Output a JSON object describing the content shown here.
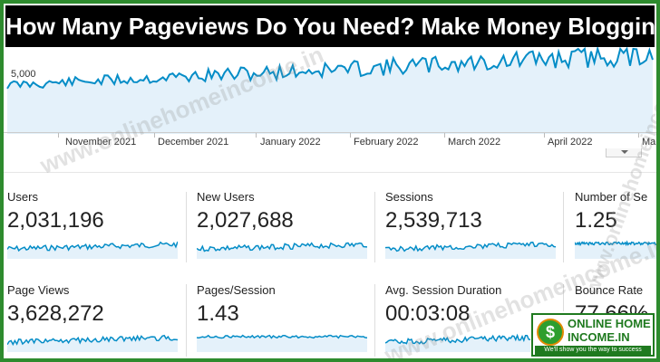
{
  "title": "How Many Pageviews Do You Need? Make Money Blogging",
  "watermark": "www.onlinehomeincome.in",
  "colors": {
    "frame": "#2e8b2e",
    "line": "#058dc7",
    "fill": "#e4f1fa",
    "title_bg": "#000000"
  },
  "chart": {
    "y_tick": "5,000",
    "months": [
      "November 2021",
      "December 2021",
      "January 2022",
      "February 2022",
      "March 2022",
      "April 2022",
      "Ma"
    ]
  },
  "metrics": [
    {
      "label": "Users",
      "value": "2,031,196"
    },
    {
      "label": "New Users",
      "value": "2,027,688"
    },
    {
      "label": "Sessions",
      "value": "2,539,713"
    },
    {
      "label": "Number of Se",
      "value": "1.25"
    },
    {
      "label": "Page Views",
      "value": "3,628,272"
    },
    {
      "label": "Pages/Session",
      "value": "1.43"
    },
    {
      "label": "Avg. Session Duration",
      "value": "00:03:08"
    },
    {
      "label": "Bounce Rate",
      "value": "77.66%"
    }
  ],
  "logo": {
    "line1": "ONLINE HOME",
    "line2": "INCOME.IN",
    "tagline": "We'll show you the way to success",
    "symbol": "$"
  }
}
